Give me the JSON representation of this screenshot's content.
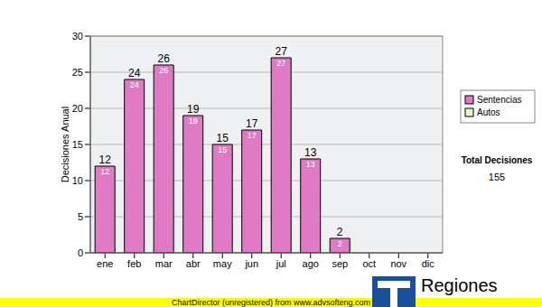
{
  "chart_data": {
    "type": "bar",
    "y_label": "Decisiones Anual",
    "categories": [
      "ene",
      "feb",
      "mar",
      "abr",
      "may",
      "jun",
      "jul",
      "ago",
      "sep",
      "oct",
      "nov",
      "dic"
    ],
    "series": [
      {
        "name": "Sentencias",
        "color": "#e07ac4",
        "values": [
          12,
          24,
          26,
          19,
          15,
          17,
          27,
          13,
          2,
          0,
          0,
          0
        ]
      },
      {
        "name": "Autos",
        "color": "#e8f5c4",
        "values": [
          0,
          0,
          0,
          0,
          0,
          0,
          0,
          0,
          0,
          0,
          0,
          0
        ]
      }
    ],
    "stacked": true,
    "ylim": [
      0,
      30
    ],
    "yticks": [
      0,
      5,
      10,
      15,
      20,
      25,
      30
    ],
    "grid": true,
    "legend": "right",
    "data_labels": true,
    "total": {
      "label": "Total Decisiones",
      "value": 155
    },
    "footer": "ChartDirector (unregistered) from www.advsofteng.com",
    "logo_text": "Regiones"
  }
}
